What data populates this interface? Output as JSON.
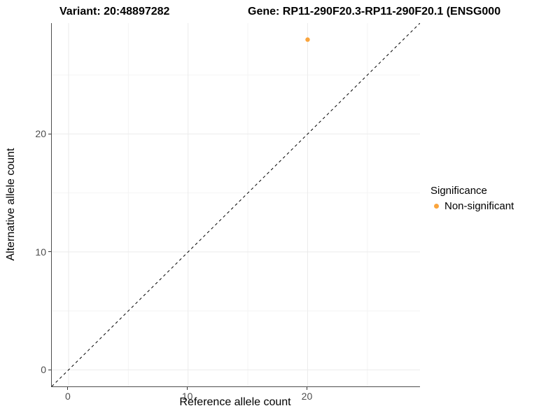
{
  "chart_data": {
    "type": "scatter",
    "title": "Variant: 20:48897282",
    "gene_title": "Gene: RP11-290F20.3-RP11-290F20.1 (ENSG000",
    "xlabel": "Reference allele count",
    "ylabel": "Alternative allele count",
    "xlim": [
      -1.4,
      29.4
    ],
    "ylim": [
      -1.4,
      29.4
    ],
    "x_ticks": [
      0,
      10,
      20
    ],
    "y_ticks": [
      0,
      10,
      20
    ],
    "x_tick_labels": [
      "0",
      "10",
      "20"
    ],
    "y_tick_labels": [
      "0",
      "10",
      "20"
    ],
    "x_minor_ticks": [
      5,
      15,
      25
    ],
    "y_minor_ticks": [
      5,
      15,
      25
    ],
    "grid": true,
    "identity_line": {
      "slope": 1,
      "intercept": 0,
      "style": "dashed",
      "color": "#000000"
    },
    "series": [
      {
        "name": "Non-significant",
        "color": "#FAA43C",
        "points": [
          {
            "x": 20,
            "y": 28
          }
        ]
      }
    ],
    "legend": {
      "title": "Significance",
      "position": "right",
      "entries": [
        {
          "label": "Non-significant",
          "color": "#FAA43C"
        }
      ]
    }
  },
  "colors": {
    "background": "#ffffff",
    "axis_line": "#4d4d4d",
    "tick_mark": "#333333",
    "tick_text": "#4d4d4d",
    "grid_major": "#ebebeb",
    "grid_minor": "#f4f4f4",
    "significant_point": "#FAA43C"
  }
}
